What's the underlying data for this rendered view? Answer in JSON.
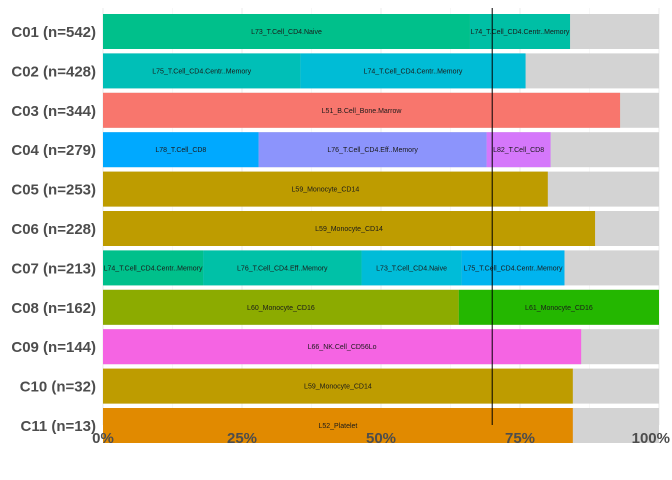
{
  "chart_data": {
    "type": "bar",
    "orientation": "horizontal",
    "stacked": true,
    "xlim": [
      0,
      100
    ],
    "x_ticks": [
      "0%",
      "25%",
      "50%",
      "75%",
      "100%"
    ],
    "x_tick_values": [
      0,
      25,
      50,
      75,
      100
    ],
    "reference_line_x": 70,
    "remainder_color": "#d3d3d3",
    "grid": true,
    "legend": "none",
    "rows": [
      {
        "label": "C01 (n=542)",
        "segments": [
          {
            "name": "L73_T.Cell_CD4.Naive",
            "value": 66,
            "color": "#00c08b"
          },
          {
            "name": "L74_T.Cell_CD4.Centr..Memory",
            "value": 18,
            "color": "#00bfa5"
          }
        ]
      },
      {
        "label": "C02 (n=428)",
        "segments": [
          {
            "name": "L75_T.Cell_CD4.Centr..Memory",
            "value": 35.5,
            "color": "#00bfb7"
          },
          {
            "name": "L74_T.Cell_CD4.Centr..Memory",
            "value": 40.5,
            "color": "#00bcd6"
          }
        ]
      },
      {
        "label": "C03 (n=344)",
        "segments": [
          {
            "name": "L51_B.Cell_Bone.Marrow",
            "value": 93,
            "color": "#f8766d"
          }
        ]
      },
      {
        "label": "C04 (n=279)",
        "segments": [
          {
            "name": "L78_T.Cell_CD8",
            "value": 28,
            "color": "#00a9ff"
          },
          {
            "name": "L76_T.Cell_CD4.Eff..Memory",
            "value": 41,
            "color": "#8c94fc"
          },
          {
            "name": "L82_T.Cell_CD8",
            "value": 11.5,
            "color": "#d577fb"
          }
        ]
      },
      {
        "label": "C05 (n=253)",
        "segments": [
          {
            "name": "L59_Monocyte_CD14",
            "value": 80,
            "color": "#be9c00"
          }
        ]
      },
      {
        "label": "C06 (n=228)",
        "segments": [
          {
            "name": "L59_Monocyte_CD14",
            "value": 88.5,
            "color": "#be9c00"
          }
        ]
      },
      {
        "label": "C07 (n=213)",
        "segments": [
          {
            "name": "L74_T.Cell_CD4.Centr..Memory",
            "value": 18,
            "color": "#00c08b"
          },
          {
            "name": "L76_T.Cell_CD4.Eff..Memory",
            "value": 28.5,
            "color": "#00c1a7"
          },
          {
            "name": "L73_T.Cell_CD4.Naive",
            "value": 18,
            "color": "#00bcd8"
          },
          {
            "name": "L75_T.Cell_CD4.Centr..Memory",
            "value": 18.5,
            "color": "#00b4ef"
          }
        ]
      },
      {
        "label": "C08 (n=162)",
        "segments": [
          {
            "name": "L60_Monocyte_CD16",
            "value": 64,
            "color": "#8cab00"
          },
          {
            "name": "L61_Monocyte_CD16",
            "value": 36,
            "color": "#24b700"
          }
        ]
      },
      {
        "label": "C09 (n=144)",
        "segments": [
          {
            "name": "L66_NK.Cell_CD56Lo",
            "value": 86,
            "color": "#f564e3"
          }
        ]
      },
      {
        "label": "C10 (n=32)",
        "segments": [
          {
            "name": "L59_Monocyte_CD14",
            "value": 84.5,
            "color": "#be9c00"
          }
        ]
      },
      {
        "label": "C11 (n=13)",
        "segments": [
          {
            "name": "L52_Platelet",
            "value": 84.5,
            "color": "#e18a00"
          }
        ]
      }
    ]
  }
}
